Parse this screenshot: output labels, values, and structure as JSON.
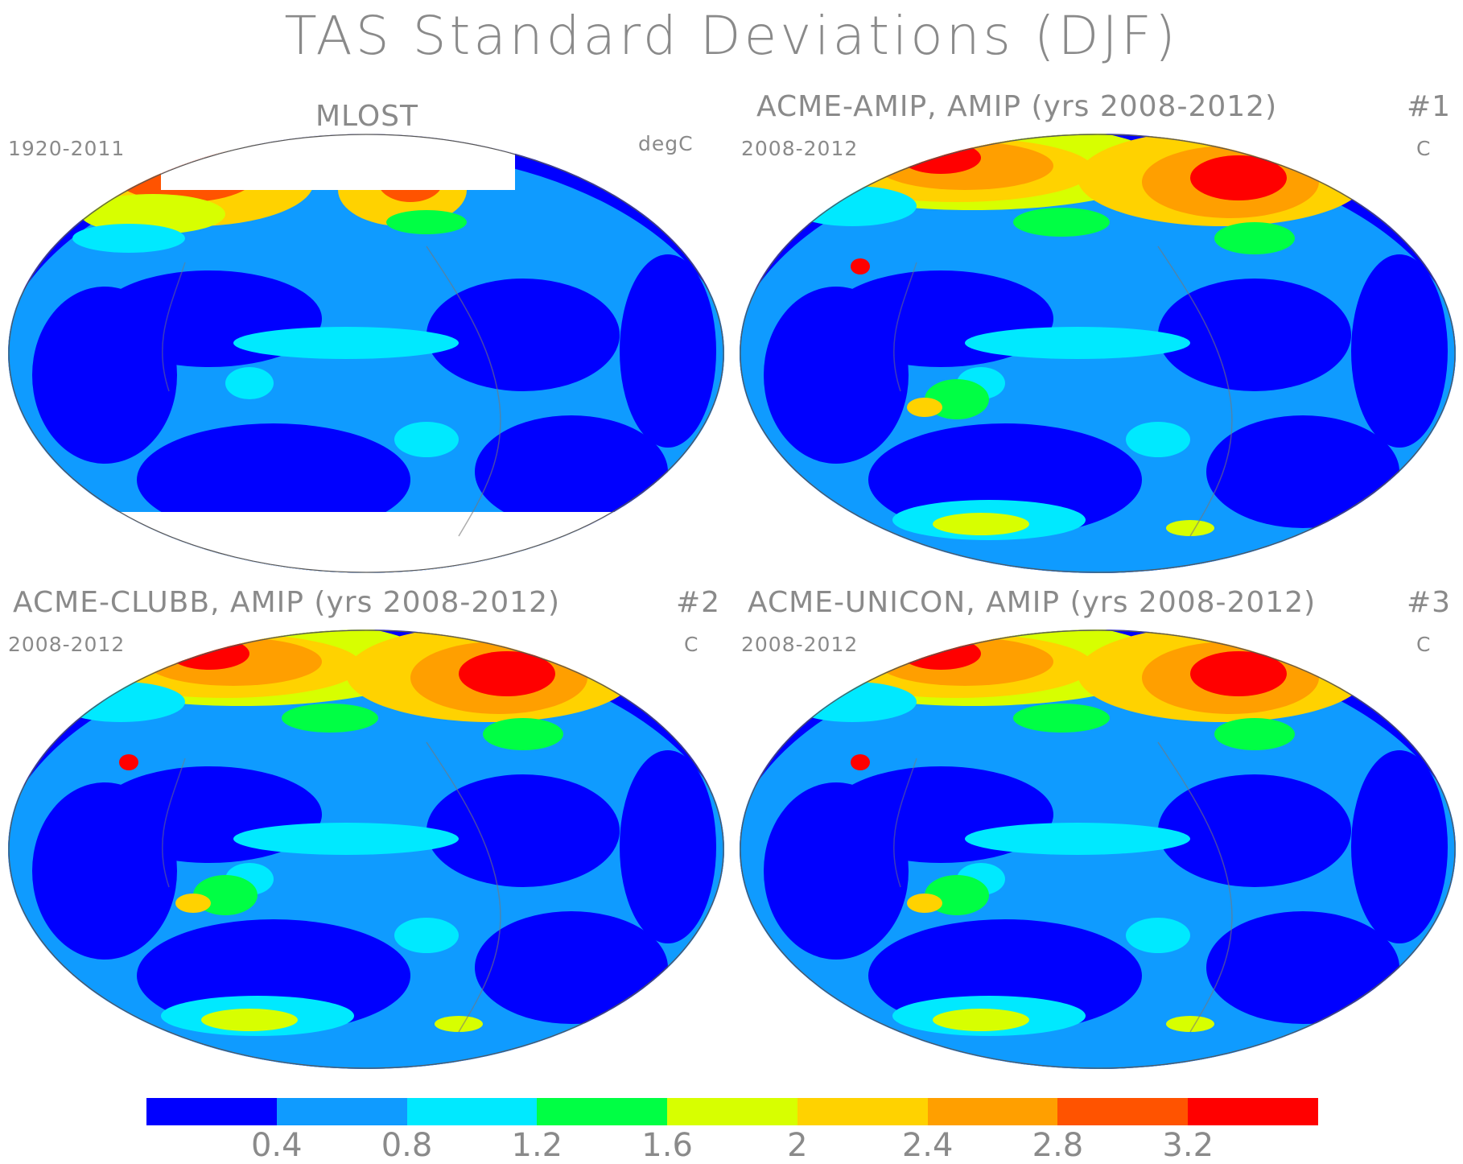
{
  "title": "TAS Standard Deviations (DJF)",
  "panels": [
    {
      "title": "MLOST",
      "left_label": "1920-2011",
      "right_label": "degC",
      "number": "",
      "kind": "obs"
    },
    {
      "title": "ACME-AMIP, AMIP (yrs 2008-2012)",
      "left_label": "2008-2012",
      "right_label": "C",
      "number": "#1",
      "kind": "model"
    },
    {
      "title": "ACME-CLUBB, AMIP (yrs 2008-2012)",
      "left_label": "2008-2012",
      "right_label": "C",
      "number": "#2",
      "kind": "model"
    },
    {
      "title": "ACME-UNICON, AMIP (yrs 2008-2012)",
      "left_label": "2008-2012",
      "right_label": "C",
      "number": "#3",
      "kind": "model"
    }
  ],
  "colorbar": {
    "colors": [
      "#0000ff",
      "#0f9bff",
      "#00e9ff",
      "#00ff44",
      "#d7ff00",
      "#ffd200",
      "#ff9f00",
      "#ff5300",
      "#ff0000"
    ],
    "labels": [
      "0.4",
      "0.8",
      "1.2",
      "1.6",
      "2",
      "2.4",
      "2.8",
      "3.2"
    ]
  }
}
